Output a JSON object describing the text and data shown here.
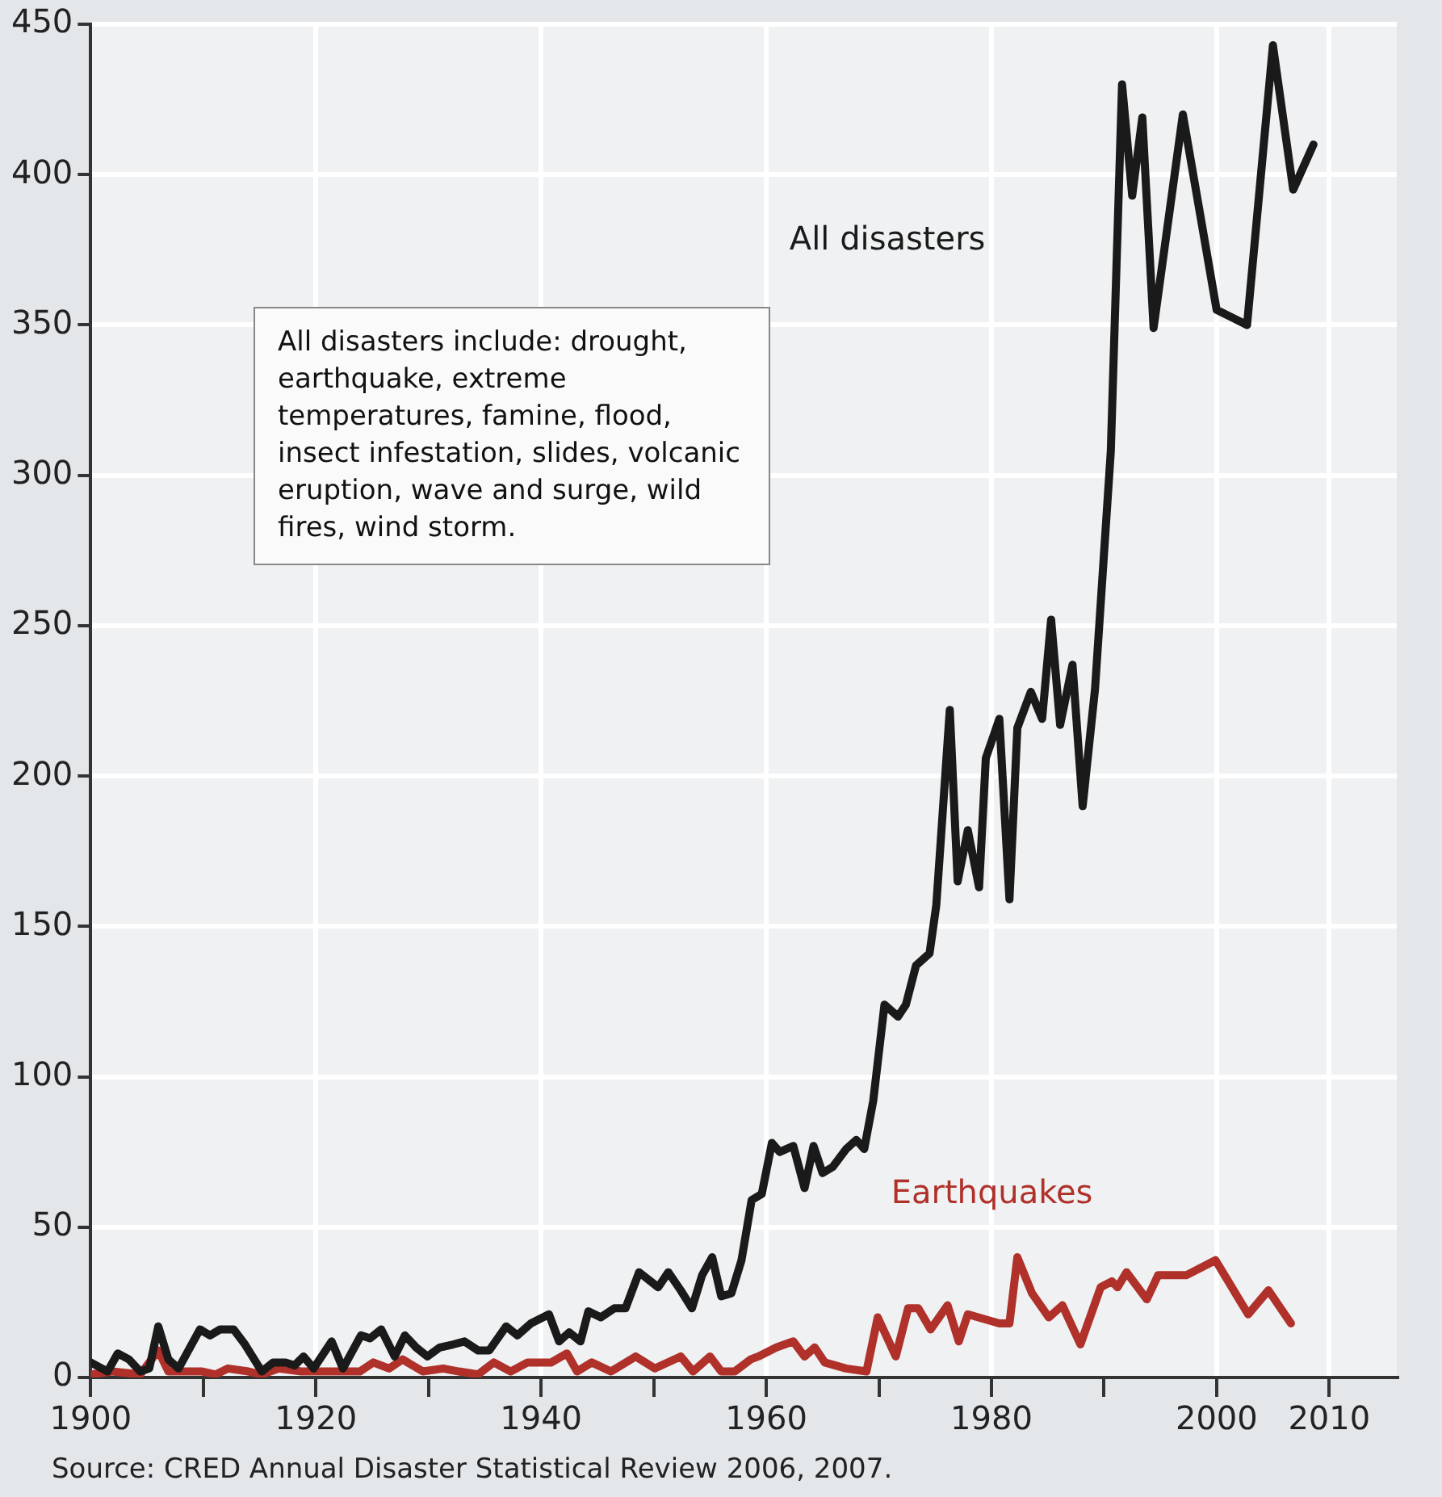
{
  "chart_data": {
    "type": "line",
    "annotations": [
      "All disasters include: drought, earthquake, extreme temperatures, famine, flood, insect infestation, slides, volcanic eruption, wave and surge, wild fires, wind storm.",
      "Source: CRED Annual Disaster Statistical Review 2006, 2007."
    ],
    "series": [
      {
        "name": "All disasters",
        "color": "#1a1a1a",
        "x": [
          1900,
          1901.5,
          1902.4,
          1903.4,
          1904.4,
          1905.2,
          1906.0,
          1906.9,
          1907.8,
          1909.7,
          1910.6,
          1911.5,
          1912.7,
          1913.7,
          1915.2,
          1916.2,
          1917.3,
          1918.1,
          1918.9,
          1919.8,
          1921.4,
          1922.4,
          1924.0,
          1924.8,
          1925.8,
          1927.0,
          1927.9,
          1928.9,
          1929.9,
          1931.0,
          1932.2,
          1933.2,
          1934.4,
          1935.4,
          1936.9,
          1937.9,
          1939.1,
          1940.7,
          1941.6,
          1942.5,
          1943.5,
          1944.2,
          1945.3,
          1946.5,
          1947.5,
          1948.7,
          1950.4,
          1951.3,
          1952.4,
          1953.4,
          1954.3,
          1955.2,
          1956.0,
          1956.9,
          1957.8,
          1958.7,
          1959.6,
          1960.5,
          1961.2,
          1962.4,
          1963.4,
          1964.2,
          1965.0,
          1965.9,
          1967.1,
          1968.0,
          1968.7,
          1969.5,
          1970.5,
          1971.7,
          1972.4,
          1973.3,
          1974.5,
          1975.1,
          1976.3,
          1977.0,
          1977.9,
          1978.9,
          1979.5,
          1980.7,
          1981.6,
          1982.3,
          1983.5,
          1984.5,
          1985.3,
          1986.1,
          1987.2,
          1988.1,
          1989.2,
          1990.6,
          1991.6,
          1992.5,
          1993.4,
          1994.4,
          1997.0,
          2000.0,
          2002.7,
          2005.0,
          2006.8,
          2008.6
        ],
        "values": [
          5,
          2,
          8,
          6,
          2,
          3,
          17,
          6,
          3,
          16,
          14,
          16,
          16,
          11,
          2,
          5,
          5,
          4,
          7,
          3,
          12,
          3,
          14,
          13,
          16,
          7,
          14,
          10,
          7,
          10,
          11,
          12,
          9,
          9,
          17,
          14,
          18,
          21,
          12,
          15,
          12,
          22,
          20,
          23,
          23,
          35,
          30,
          35,
          29,
          23,
          34,
          40,
          27,
          28,
          39,
          59,
          61,
          78,
          75,
          77,
          63,
          77,
          68,
          70,
          76,
          79,
          76,
          92,
          124,
          120,
          124,
          137,
          141,
          157,
          222,
          165,
          182,
          163,
          206,
          219,
          159,
          216,
          228,
          219,
          252,
          217,
          237,
          190,
          229,
          308,
          430,
          393,
          419,
          349,
          420,
          355,
          350,
          443,
          395,
          410
        ]
      },
      {
        "name": "Earthquakes",
        "color": "#b0302a",
        "x": [
          1900,
          1901.9,
          1904.4,
          1906.0,
          1906.9,
          1909.9,
          1911.1,
          1912.2,
          1914.0,
          1915.2,
          1916.7,
          1918.7,
          1919.9,
          1921.7,
          1923.9,
          1925.1,
          1926.5,
          1927.7,
          1929.5,
          1931.3,
          1932.7,
          1934.4,
          1935.8,
          1937.3,
          1938.8,
          1940.9,
          1942.3,
          1943.2,
          1944.5,
          1946.2,
          1948.4,
          1950.1,
          1952.4,
          1953.5,
          1955.0,
          1956.0,
          1957.2,
          1958.6,
          1959.3,
          1960.9,
          1962.4,
          1963.4,
          1964.3,
          1965.2,
          1967.1,
          1968.9,
          1969.9,
          1971.5,
          1972.6,
          1973.5,
          1974.6,
          1976.1,
          1977.1,
          1977.9,
          1980.7,
          1981.6,
          1982.3,
          1983.6,
          1985.1,
          1986.3,
          1987.9,
          1989.7,
          1990.7,
          1991.2,
          1992.0,
          1993.8,
          1994.8,
          1997.3,
          1999.9,
          2002.8,
          2004.6,
          2006.6
        ],
        "values": [
          1,
          2,
          1,
          9,
          2,
          2,
          1,
          3,
          2,
          1,
          3,
          2,
          2,
          2,
          2,
          5,
          3,
          6,
          2,
          3,
          2,
          1,
          5,
          2,
          5,
          5,
          8,
          2,
          5,
          2,
          7,
          3,
          7,
          2,
          7,
          2,
          2,
          6,
          7,
          10,
          12,
          7,
          10,
          5,
          3,
          2,
          20,
          7,
          23,
          23,
          16,
          24,
          12,
          21,
          18,
          18,
          40,
          28,
          20,
          24,
          11,
          30,
          32,
          30,
          35,
          26,
          34,
          34,
          39,
          21,
          29,
          18
        ]
      }
    ],
    "xlim": [
      1900,
      2016
    ],
    "xticks": [
      1900,
      {
        "value": 1910,
        "label": null
      },
      1920,
      {
        "value": 1930,
        "label": null
      },
      1940,
      {
        "value": 1950,
        "label": null
      },
      1960,
      {
        "value": 1970,
        "label": null
      },
      1980,
      {
        "value": 1990,
        "label": null
      },
      2000,
      2010
    ],
    "ylim": [
      0,
      450
    ],
    "yticks": [
      0,
      50,
      100,
      150,
      200,
      250,
      300,
      350,
      400,
      450
    ],
    "grid": true,
    "legend": false,
    "marker": "none",
    "line_style": "solid"
  }
}
